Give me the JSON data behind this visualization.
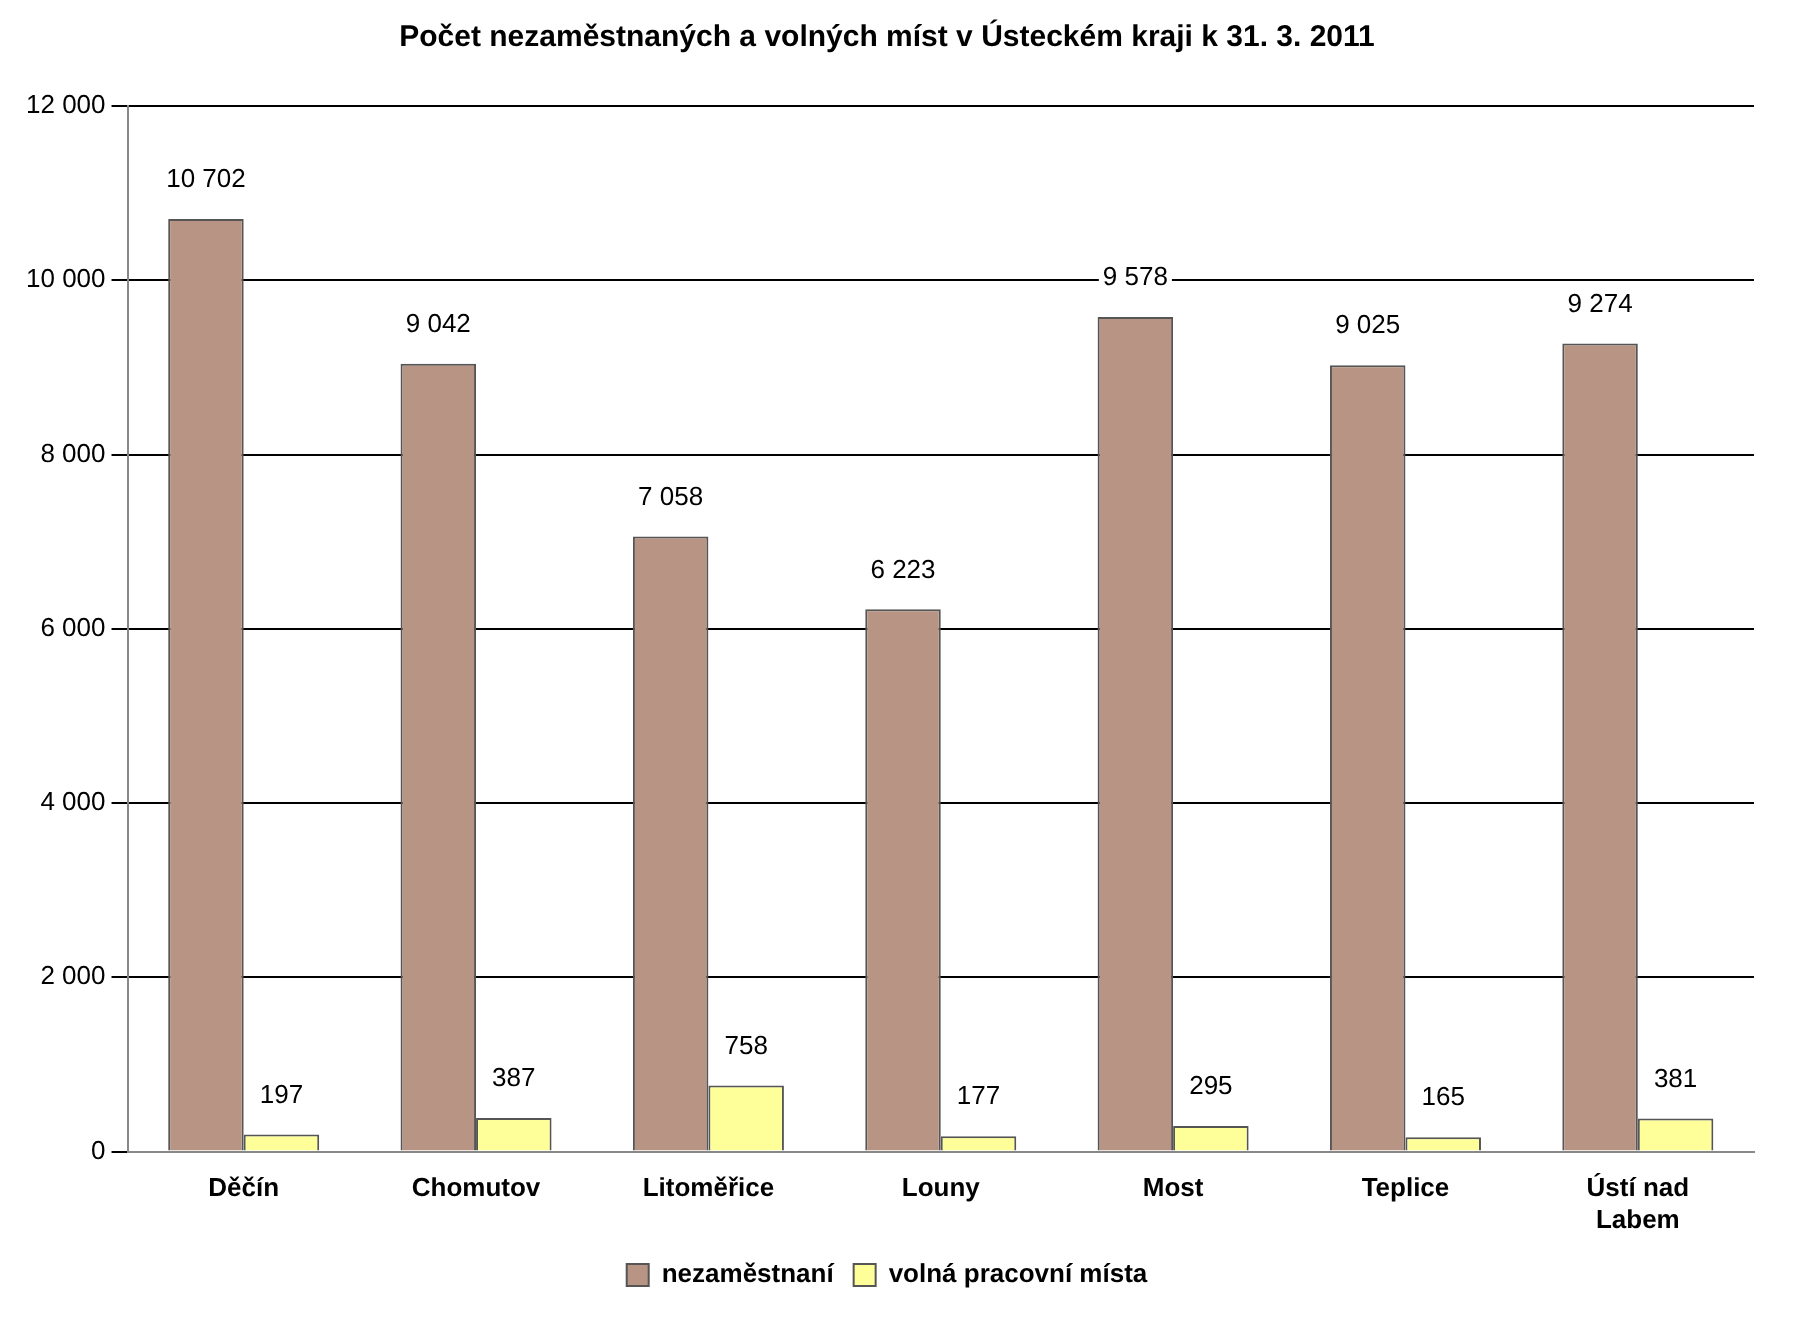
{
  "chart_data": {
    "type": "bar",
    "title": "Počet nezaměstnaných a volných míst v Ústeckém kraji k 31. 3. 2011",
    "categories": [
      "Děčín",
      "Chomutov",
      "Litoměřice",
      "Louny",
      "Most",
      "Teplice",
      "Ústí nad Labem"
    ],
    "series": [
      {
        "name": "nezaměstnaní",
        "color": "#b89484",
        "values": [
          10702,
          9042,
          7058,
          6223,
          9578,
          9025,
          9274
        ],
        "value_labels": [
          "10 702",
          "9 042",
          "7 058",
          "6 223",
          "9 578",
          "9 025",
          "9 274"
        ]
      },
      {
        "name": "volná pracovní místa",
        "color": "#ffff99",
        "values": [
          197,
          387,
          758,
          177,
          295,
          165,
          381
        ],
        "value_labels": [
          "197",
          "387",
          "758",
          "177",
          "295",
          "165",
          "381"
        ]
      }
    ],
    "ylim": [
      0,
      12000
    ],
    "yticks": [
      {
        "value": 0,
        "label": "0"
      },
      {
        "value": 2000,
        "label": "2 000"
      },
      {
        "value": 4000,
        "label": "4 000"
      },
      {
        "value": 6000,
        "label": "6 000"
      },
      {
        "value": 8000,
        "label": "8 000"
      },
      {
        "value": 10000,
        "label": "10 000"
      },
      {
        "value": 12000,
        "label": "12 000"
      }
    ],
    "grid": "y",
    "legend": "bottom"
  }
}
